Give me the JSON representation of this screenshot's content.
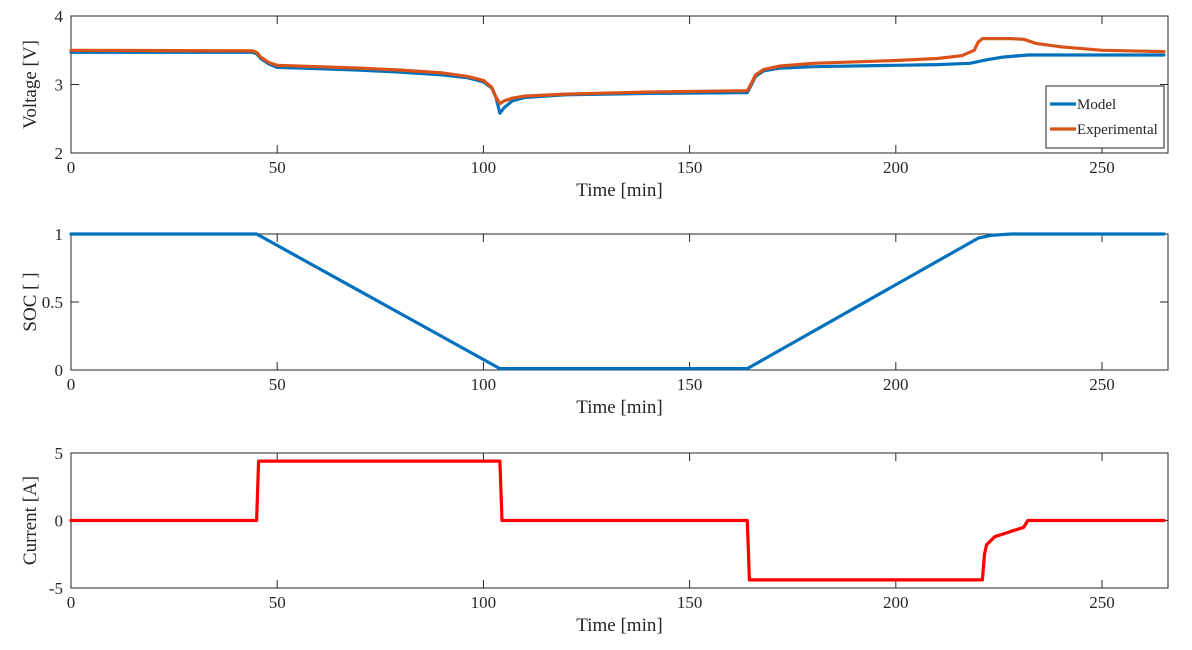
{
  "chart_data": [
    {
      "type": "line",
      "title": "",
      "xlabel": "Time [min]",
      "ylabel": "Voltage [V]",
      "xlim": [
        0,
        266
      ],
      "ylim": [
        2,
        4
      ],
      "xticks": [
        0,
        50,
        100,
        150,
        200,
        250
      ],
      "yticks": [
        2,
        3,
        4
      ],
      "grid": false,
      "legend": "bottom-right",
      "series": [
        {
          "name": "Model",
          "color": "#0072BD",
          "points": [
            [
              0,
              3.47
            ],
            [
              44,
              3.47
            ],
            [
              45,
              3.45
            ],
            [
              46,
              3.38
            ],
            [
              48,
              3.3
            ],
            [
              50,
              3.25
            ],
            [
              60,
              3.23
            ],
            [
              70,
              3.21
            ],
            [
              80,
              3.18
            ],
            [
              90,
              3.14
            ],
            [
              96,
              3.1
            ],
            [
              100,
              3.04
            ],
            [
              102,
              2.95
            ],
            [
              103,
              2.82
            ],
            [
              104,
              2.58
            ],
            [
              105,
              2.66
            ],
            [
              107,
              2.76
            ],
            [
              110,
              2.81
            ],
            [
              120,
              2.85
            ],
            [
              140,
              2.87
            ],
            [
              164,
              2.88
            ],
            [
              165,
              3.0
            ],
            [
              166,
              3.12
            ],
            [
              168,
              3.2
            ],
            [
              172,
              3.24
            ],
            [
              180,
              3.26
            ],
            [
              200,
              3.28
            ],
            [
              210,
              3.29
            ],
            [
              218,
              3.31
            ],
            [
              222,
              3.36
            ],
            [
              226,
              3.4
            ],
            [
              232,
              3.43
            ],
            [
              240,
              3.43
            ],
            [
              250,
              3.43
            ],
            [
              265,
              3.43
            ]
          ]
        },
        {
          "name": "Experimental",
          "color": "#D95319",
          "points": [
            [
              0,
              3.5
            ],
            [
              44,
              3.49
            ],
            [
              45,
              3.47
            ],
            [
              46,
              3.4
            ],
            [
              48,
              3.32
            ],
            [
              50,
              3.28
            ],
            [
              60,
              3.26
            ],
            [
              70,
              3.24
            ],
            [
              80,
              3.21
            ],
            [
              90,
              3.17
            ],
            [
              96,
              3.12
            ],
            [
              100,
              3.06
            ],
            [
              102,
              2.96
            ],
            [
              103,
              2.82
            ],
            [
              104,
              2.72
            ],
            [
              105,
              2.76
            ],
            [
              107,
              2.8
            ],
            [
              110,
              2.83
            ],
            [
              120,
              2.86
            ],
            [
              140,
              2.89
            ],
            [
              164,
              2.91
            ],
            [
              165,
              3.02
            ],
            [
              166,
              3.14
            ],
            [
              168,
              3.22
            ],
            [
              172,
              3.27
            ],
            [
              180,
              3.31
            ],
            [
              200,
              3.35
            ],
            [
              210,
              3.38
            ],
            [
              216,
              3.42
            ],
            [
              219,
              3.5
            ],
            [
              220,
              3.62
            ],
            [
              221,
              3.67
            ],
            [
              224,
              3.67
            ],
            [
              228,
              3.67
            ],
            [
              231,
              3.66
            ],
            [
              234,
              3.6
            ],
            [
              240,
              3.55
            ],
            [
              250,
              3.5
            ],
            [
              265,
              3.48
            ]
          ]
        }
      ]
    },
    {
      "type": "line",
      "title": "",
      "xlabel": "Time [min]",
      "ylabel": "SOC [ ]",
      "xlim": [
        0,
        266
      ],
      "ylim": [
        0,
        1
      ],
      "xticks": [
        0,
        50,
        100,
        150,
        200,
        250
      ],
      "yticks": [
        "0",
        "0.5",
        "1"
      ],
      "grid": false,
      "series": [
        {
          "color": "#0072BD",
          "points": [
            [
              0,
              1.0
            ],
            [
              45,
              1.0
            ],
            [
              104,
              0.01
            ],
            [
              164,
              0.01
            ],
            [
              220,
              0.97
            ],
            [
              223,
              0.99
            ],
            [
              228,
              1.0
            ],
            [
              265,
              1.0
            ]
          ]
        }
      ]
    },
    {
      "type": "line",
      "title": "",
      "xlabel": "Time [min]",
      "ylabel": "Current [A]",
      "xlim": [
        0,
        266
      ],
      "ylim": [
        -5,
        5
      ],
      "xticks": [
        0,
        50,
        100,
        150,
        200,
        250
      ],
      "yticks": [
        -5,
        0,
        5
      ],
      "grid": false,
      "series": [
        {
          "color": "#FF0000",
          "points": [
            [
              0,
              0
            ],
            [
              45,
              0
            ],
            [
              45.5,
              4.4
            ],
            [
              104,
              4.4
            ],
            [
              104.5,
              0
            ],
            [
              164,
              0
            ],
            [
              164.5,
              -4.4
            ],
            [
              221,
              -4.4
            ],
            [
              221.5,
              -2.5
            ],
            [
              222,
              -1.8
            ],
            [
              224,
              -1.2
            ],
            [
              228,
              -0.8
            ],
            [
              231,
              -0.5
            ],
            [
              232,
              0
            ],
            [
              265,
              0
            ]
          ]
        }
      ]
    }
  ]
}
